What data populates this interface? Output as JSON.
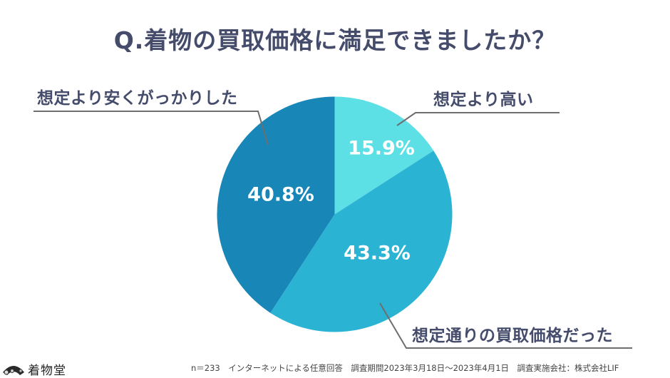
{
  "title": "Q.着物の買取価格に満足できましたか？",
  "chart_data": {
    "type": "pie",
    "title": "Q.着物の買取価格に満足できましたか？",
    "categories": [
      "想定より高い",
      "想定通りの買取価格だった",
      "想定より安くがっかりした"
    ],
    "values": [
      15.9,
      43.3,
      40.8
    ],
    "value_labels": [
      "15.9%",
      "43.3%",
      "40.8%"
    ],
    "colors": [
      "#5ce0e6",
      "#2bb3d4",
      "#1887b8"
    ],
    "start_angle": "12 o'clock, clockwise",
    "legend_position": "callout labels with leader lines"
  },
  "labels": {
    "high": "想定より高い",
    "expected": "想定通りの買取価格だった",
    "low": "想定より安くがっかりした"
  },
  "percentages": {
    "high": "15.9%",
    "expected": "43.3%",
    "low": "40.8%"
  },
  "footer": {
    "text": "n＝233　インターネットによる任意回答　調査期間2023年3月18日～2023年4月1日　調査実施会社：株式会社LIF"
  },
  "logo": {
    "text": "着物堂",
    "icon": "folding-fan-icon"
  }
}
